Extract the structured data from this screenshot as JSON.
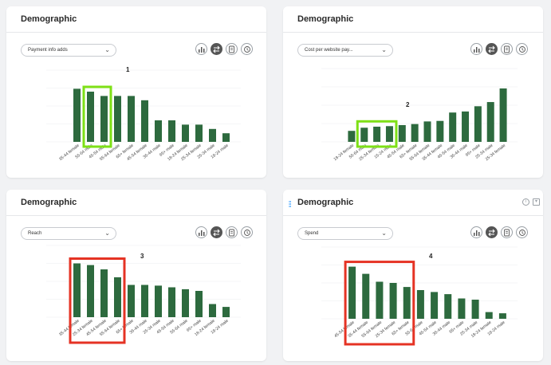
{
  "colors": {
    "bar": "#2d6a3e",
    "green_highlight": "#7ee016",
    "red_highlight": "#e53324"
  },
  "cards": [
    {
      "title": "Demographic",
      "metric": "Payment info adds",
      "marker": "1",
      "highlight": "green",
      "chart_data": {
        "type": "bar",
        "categories": [
          "35-44 female",
          "55-64 male",
          "45-54 male",
          "55-64 female",
          "65+ female",
          "45-54 female",
          "35-44 male",
          "65+ male",
          "18-24 female",
          "25-34 female",
          "25-34 male",
          "18-24 male"
        ],
        "values": [
          7.4,
          7.0,
          6.4,
          6.4,
          6.4,
          5.8,
          3.0,
          3.0,
          2.4,
          2.4,
          1.8,
          1.2
        ],
        "ylim": [
          0,
          10
        ],
        "grid": true,
        "highlight_range": [
          1,
          2
        ]
      }
    },
    {
      "title": "Demographic",
      "metric": "Cost per website pay...",
      "marker": "2",
      "highlight": "green",
      "chart_data": {
        "type": "bar",
        "categories": [
          "18-24 female",
          "55-64 male",
          "25-34 female",
          "15-24 male",
          "45-54 male",
          "65+ female",
          "55-64 female",
          "35-44 female",
          "45-54 male",
          "35-44 male",
          "65+ male",
          "25-34 male",
          "25-34 female"
        ],
        "values": [
          21,
          27,
          29,
          30,
          32,
          34,
          39,
          40,
          56,
          58,
          68,
          76,
          102
        ],
        "ylim": [
          0,
          140
        ],
        "grid": true,
        "highlight_range": [
          1,
          3
        ]
      }
    },
    {
      "title": "Demographic",
      "metric": "Reach",
      "marker": "3",
      "highlight": "red",
      "chart_data": {
        "type": "bar",
        "categories": [
          "35-44 female",
          "25-34 female",
          "45-54 female",
          "55-64 female",
          "65+ female",
          "35-44 male",
          "25-34 male",
          "45-54 male",
          "55-64 male",
          "65+ male",
          "18-24 female",
          "18-24 male"
        ],
        "values": [
          22.5,
          21.8,
          20.0,
          16.7,
          13.5,
          13.5,
          13.2,
          12.5,
          11.7,
          11.0,
          5.5,
          4.3
        ],
        "ylim": [
          0,
          30
        ],
        "grid": true,
        "highlight_range": [
          0,
          3
        ]
      }
    },
    {
      "title": "Demographic",
      "metric": "Spend",
      "marker": "4",
      "highlight": "red",
      "chart_data": {
        "type": "bar",
        "categories": [
          "45-54 female",
          "35-44 female",
          "55-64 female",
          "25-34 female",
          "65+ female",
          "55-64 male",
          "45-54 male",
          "35-44 male",
          "65+ male",
          "25-34 male",
          "18-24 female",
          "18-24 male"
        ],
        "values": [
          21.8,
          18.8,
          15.5,
          15.0,
          13.3,
          12.0,
          11.2,
          10.3,
          8.5,
          8.0,
          2.8,
          2.3
        ],
        "ylim": [
          0,
          30
        ],
        "grid": true,
        "highlight_range": [
          0,
          4
        ]
      }
    }
  ]
}
